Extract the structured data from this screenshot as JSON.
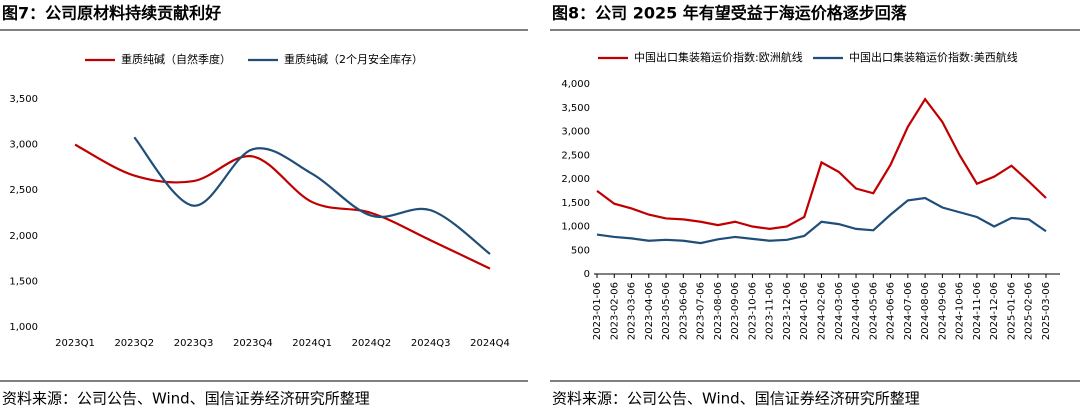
{
  "chart_data": [
    {
      "type": "line",
      "title": "图7：公司原材料持续贡献利好",
      "smooth": true,
      "categories": [
        "2023Q1",
        "2023Q2",
        "2023Q3",
        "2023Q4",
        "2024Q1",
        "2024Q2",
        "2024Q3",
        "2024Q4"
      ],
      "series": [
        {
          "name": "重质纯碱（自然季度）",
          "color": "#c00000",
          "values": [
            3000,
            2660,
            2600,
            2870,
            2370,
            2250,
            1950,
            1640
          ]
        },
        {
          "name": "重质纯碱（2个月安全库存）",
          "color": "#1f4e79",
          "values": [
            null,
            3080,
            2330,
            2950,
            2680,
            2220,
            2280,
            1800
          ]
        }
      ],
      "ylim": [
        1000,
        3500
      ],
      "yticks": [
        {
          "value": 1000,
          "label": "1,000"
        },
        {
          "value": 1500,
          "label": "1,500"
        },
        {
          "value": 2000,
          "label": "2,000"
        },
        {
          "value": 2500,
          "label": "2,500"
        },
        {
          "value": 3000,
          "label": "3,000"
        },
        {
          "value": 3500,
          "label": "3,500"
        }
      ],
      "source": "资料来源：公司公告、Wind、国信证券经济研究所整理"
    },
    {
      "type": "line",
      "title": "图8：公司 2025 年有望受益于海运价格逐步回落",
      "smooth": false,
      "categories": [
        "2023-01-06",
        "2023-02-06",
        "2023-03-06",
        "2023-04-06",
        "2023-05-06",
        "2023-06-06",
        "2023-07-06",
        "2023-08-06",
        "2023-09-06",
        "2023-10-06",
        "2023-11-06",
        "2023-12-06",
        "2024-01-06",
        "2024-02-06",
        "2024-03-06",
        "2024-04-06",
        "2024-05-06",
        "2024-06-06",
        "2024-07-06",
        "2024-08-06",
        "2024-09-06",
        "2024-10-06",
        "2024-11-06",
        "2024-12-06",
        "2025-01-06",
        "2025-02-06",
        "2025-03-06"
      ],
      "series": [
        {
          "name": "中国出口集装箱运价指数:欧洲航线",
          "color": "#c00000",
          "values": [
            1750,
            1480,
            1380,
            1250,
            1170,
            1150,
            1100,
            1030,
            1100,
            1000,
            950,
            1000,
            1200,
            2350,
            2150,
            1800,
            1700,
            2300,
            3100,
            3680,
            3200,
            2500,
            1900,
            2050,
            2280,
            1950,
            1600
          ]
        },
        {
          "name": "中国出口集装箱运价指数:美西航线",
          "color": "#1f4e79",
          "values": [
            830,
            780,
            750,
            700,
            720,
            700,
            650,
            730,
            780,
            740,
            700,
            720,
            800,
            1100,
            1050,
            950,
            920,
            1250,
            1550,
            1600,
            1400,
            1300,
            1200,
            1000,
            1180,
            1150,
            900
          ]
        }
      ],
      "ylim": [
        0,
        4000
      ],
      "yticks": [
        0,
        500,
        {
          "value": 1000,
          "label": "1,000"
        },
        {
          "value": 1500,
          "label": "1,500"
        },
        {
          "value": 2000,
          "label": "2,000"
        },
        {
          "value": 2500,
          "label": "2,500"
        },
        {
          "value": 3000,
          "label": "3,000"
        },
        {
          "value": 3500,
          "label": "3,500"
        },
        {
          "value": 4000,
          "label": "4,000"
        }
      ],
      "source": "资料来源：公司公告、Wind、国信证券经济研究所整理"
    }
  ]
}
